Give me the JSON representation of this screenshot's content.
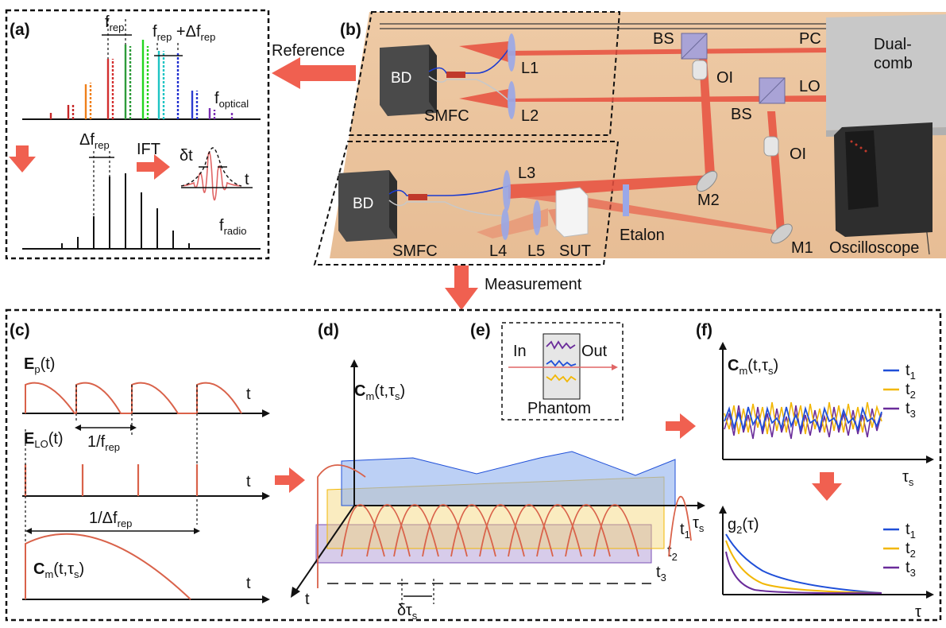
{
  "panels": {
    "a": "(a)",
    "b": "(b)",
    "c": "(c)",
    "d": "(d)",
    "e": "(e)",
    "f": "(f)"
  },
  "a": {
    "frep": "f",
    "frep_sub": "rep",
    "frep_plus": "f",
    "frep_plus_sub": "rep",
    "frep_plus_tail": " +Δf",
    "frep_plus_sub2": "rep",
    "foptical": "f",
    "foptical_sub": "optical",
    "dfrep": "Δf",
    "dfrep_sub": "rep",
    "ift": "IFT",
    "dt": "δt",
    "t": "t",
    "fradio": "f",
    "fradio_sub": "radio"
  },
  "b": {
    "reference": "Reference",
    "measurement": "Measurement",
    "bd": "BD",
    "smfc": "SMFC",
    "l1": "L1",
    "l2": "L2",
    "l3": "L3",
    "l4": "L4",
    "l5": "L5",
    "bs": "BS",
    "oi": "OI",
    "pc": "PC",
    "lo": "LO",
    "dual": "Dual-",
    "comb": "comb",
    "m1": "M1",
    "m2": "M2",
    "etalon": "Etalon",
    "sut": "SUT",
    "osc": "Oscilloscope"
  },
  "c": {
    "ep": "E",
    "ep_sub": "p",
    "ep_tail": "(t)",
    "elo": "E",
    "elo_sub": "LO",
    "elo_tail": "(t)",
    "inv_frep": "1/f",
    "inv_frep_sub": "rep",
    "inv_dfrep": "1/Δf",
    "inv_dfrep_sub": "rep",
    "cm": "C",
    "cm_sub": "m",
    "cm_tail": "(t,τ",
    "cm_tail_sub": "s",
    "cm_close": ")",
    "t": "t"
  },
  "d": {
    "cm": "C",
    "cm_sub": "m",
    "cm_tail": "(t,τ",
    "cm_tail_sub": "s",
    "cm_close": ")",
    "tau": "τ",
    "tau_sub": "s",
    "t": "t",
    "t1": "t",
    "t1_sub": "1",
    "t2": "t",
    "t2_sub": "2",
    "t3": "t",
    "t3_sub": "3",
    "dtau": "δτ",
    "dtau_sub": "s"
  },
  "e": {
    "in": "In",
    "out": "Out",
    "phantom": "Phantom"
  },
  "f": {
    "cm": "C",
    "cm_sub": "m",
    "cm_tail": "(t,τ",
    "cm_tail_sub": "s",
    "cm_close": ")",
    "tau_s": "τ",
    "tau_s_sub": "s",
    "g2": "g",
    "g2_sub": "2",
    "g2_tail": "(τ)",
    "tau": "τ",
    "legend": [
      {
        "name": "t",
        "sub": "1",
        "color": "#1f4fd8"
      },
      {
        "name": "t",
        "sub": "2",
        "color": "#f2b705"
      },
      {
        "name": "t",
        "sub": "3",
        "color": "#6a2c9a"
      }
    ]
  },
  "colors": {
    "accent": "#f06050",
    "pulse": "#d9624a",
    "blue": "#1f4fd8",
    "yellow": "#f2b705",
    "purple": "#6a2c9a",
    "table": "#eec9a3"
  }
}
